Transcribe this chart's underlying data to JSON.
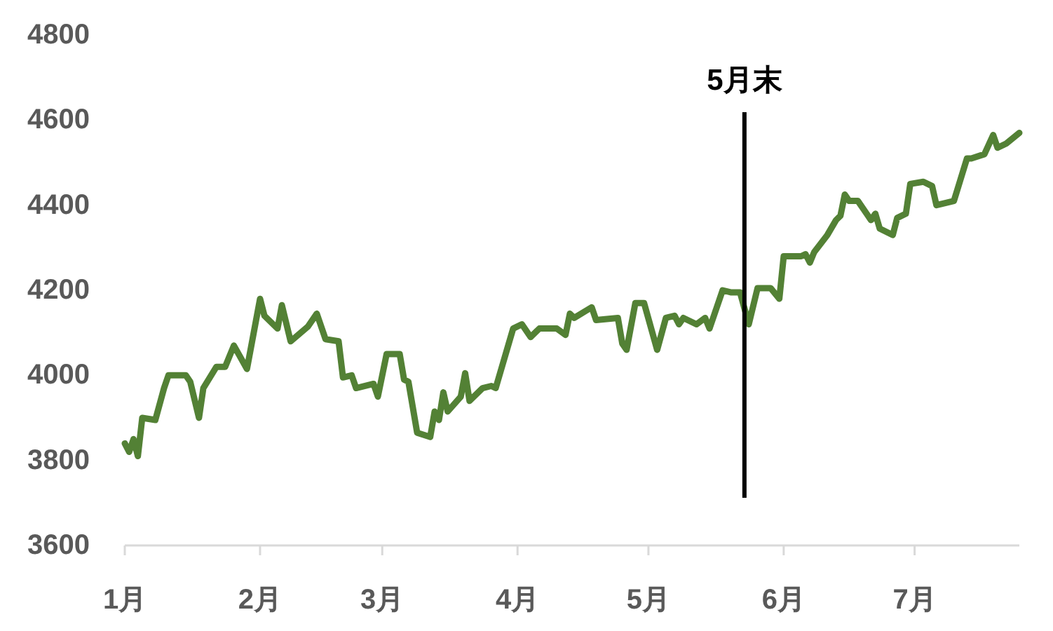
{
  "chart_data": {
    "type": "line",
    "x": [
      "--01-01",
      "--01-02",
      "--01-03",
      "--01-04",
      "--01-05",
      "--01-08",
      "--01-10",
      "--01-11",
      "--01-15",
      "--01-16",
      "--01-18",
      "--01-19",
      "--01-22",
      "--01-24",
      "--01-26",
      "--01-29",
      "--02-01",
      "--02-02",
      "--02-05",
      "--02-06",
      "--02-08",
      "--02-12",
      "--02-14",
      "--02-16",
      "--02-19",
      "--02-20",
      "--02-22",
      "--02-23",
      "--02-27",
      "--02-28",
      "--03-02",
      "--03-05",
      "--03-06",
      "--03-07",
      "--03-09",
      "--03-12",
      "--03-13",
      "--03-14",
      "--03-15",
      "--03-16",
      "--03-19",
      "--03-20",
      "--03-21",
      "--03-24",
      "--03-26",
      "--03-27",
      "--03-29",
      "--03-31",
      "--04-02",
      "--04-04",
      "--04-06",
      "--04-10",
      "--04-12",
      "--04-13",
      "--04-14",
      "--04-18",
      "--04-19",
      "--04-24",
      "--04-25",
      "--04-26",
      "--04-28",
      "--04-30",
      "--05-03",
      "--05-05",
      "--05-07",
      "--05-08",
      "--05-09",
      "--05-12",
      "--05-14",
      "--05-15",
      "--05-18",
      "--05-20",
      "--05-22",
      "--05-24",
      "--05-26",
      "--05-29",
      "--05-31",
      "--06-01",
      "--06-05",
      "--06-06",
      "--06-07",
      "--06-08",
      "--06-11",
      "--06-13",
      "--06-14",
      "--06-15",
      "--06-16",
      "--06-18",
      "--06-20",
      "--06-21",
      "--06-22",
      "--06-23",
      "--06-26",
      "--06-27",
      "--06-29",
      "--06-30",
      "--07-03",
      "--07-05",
      "--07-06",
      "--07-10",
      "--07-13",
      "--07-14",
      "--07-17",
      "--07-19",
      "--07-20",
      "--07-22",
      "--07-25"
    ],
    "series": [
      {
        "color": "#538135",
        "values": [
          3840,
          3820,
          3850,
          3810,
          3900,
          3895,
          3970,
          4000,
          4000,
          3985,
          3900,
          3970,
          4020,
          4020,
          4070,
          4015,
          4180,
          4140,
          4110,
          4165,
          4080,
          4115,
          4145,
          4085,
          4080,
          3995,
          4000,
          3970,
          3980,
          3950,
          4050,
          4050,
          3990,
          3985,
          3865,
          3855,
          3915,
          3895,
          3960,
          3915,
          3950,
          4005,
          3940,
          3970,
          3975,
          3970,
          4040,
          4110,
          4120,
          4090,
          4110,
          4110,
          4095,
          4145,
          4135,
          4160,
          4130,
          4135,
          4075,
          4060,
          4170,
          4170,
          4060,
          4135,
          4140,
          4120,
          4135,
          4120,
          4135,
          4110,
          4200,
          4195,
          4195,
          4120,
          4205,
          4205,
          4180,
          4280,
          4280,
          4285,
          4265,
          4290,
          4330,
          4365,
          4375,
          4425,
          4410,
          4410,
          4380,
          4365,
          4380,
          4345,
          4330,
          4370,
          4380,
          4450,
          4455,
          4445,
          4400,
          4410,
          4510,
          4510,
          4520,
          4565,
          4535,
          4545,
          4570
        ]
      }
    ],
    "xlim": [
      "--01-01",
      "--07-25"
    ],
    "xticks": [
      {
        "value": "--01-01",
        "label": "1月"
      },
      {
        "value": "--02-01",
        "label": "2月"
      },
      {
        "value": "--03-01",
        "label": "3月"
      },
      {
        "value": "--04-01",
        "label": "4月"
      },
      {
        "value": "--05-01",
        "label": "5月"
      },
      {
        "value": "--06-01",
        "label": "6月"
      },
      {
        "value": "--07-01",
        "label": "7月"
      }
    ],
    "ylim": [
      3600,
      4800
    ],
    "yticks": [
      3600,
      3800,
      4000,
      4200,
      4400,
      4600,
      4800
    ],
    "grid": false,
    "ref_lines": [
      {
        "axis": "x",
        "value": "--05-23",
        "label": "5月末",
        "color": "#000000"
      }
    ]
  }
}
